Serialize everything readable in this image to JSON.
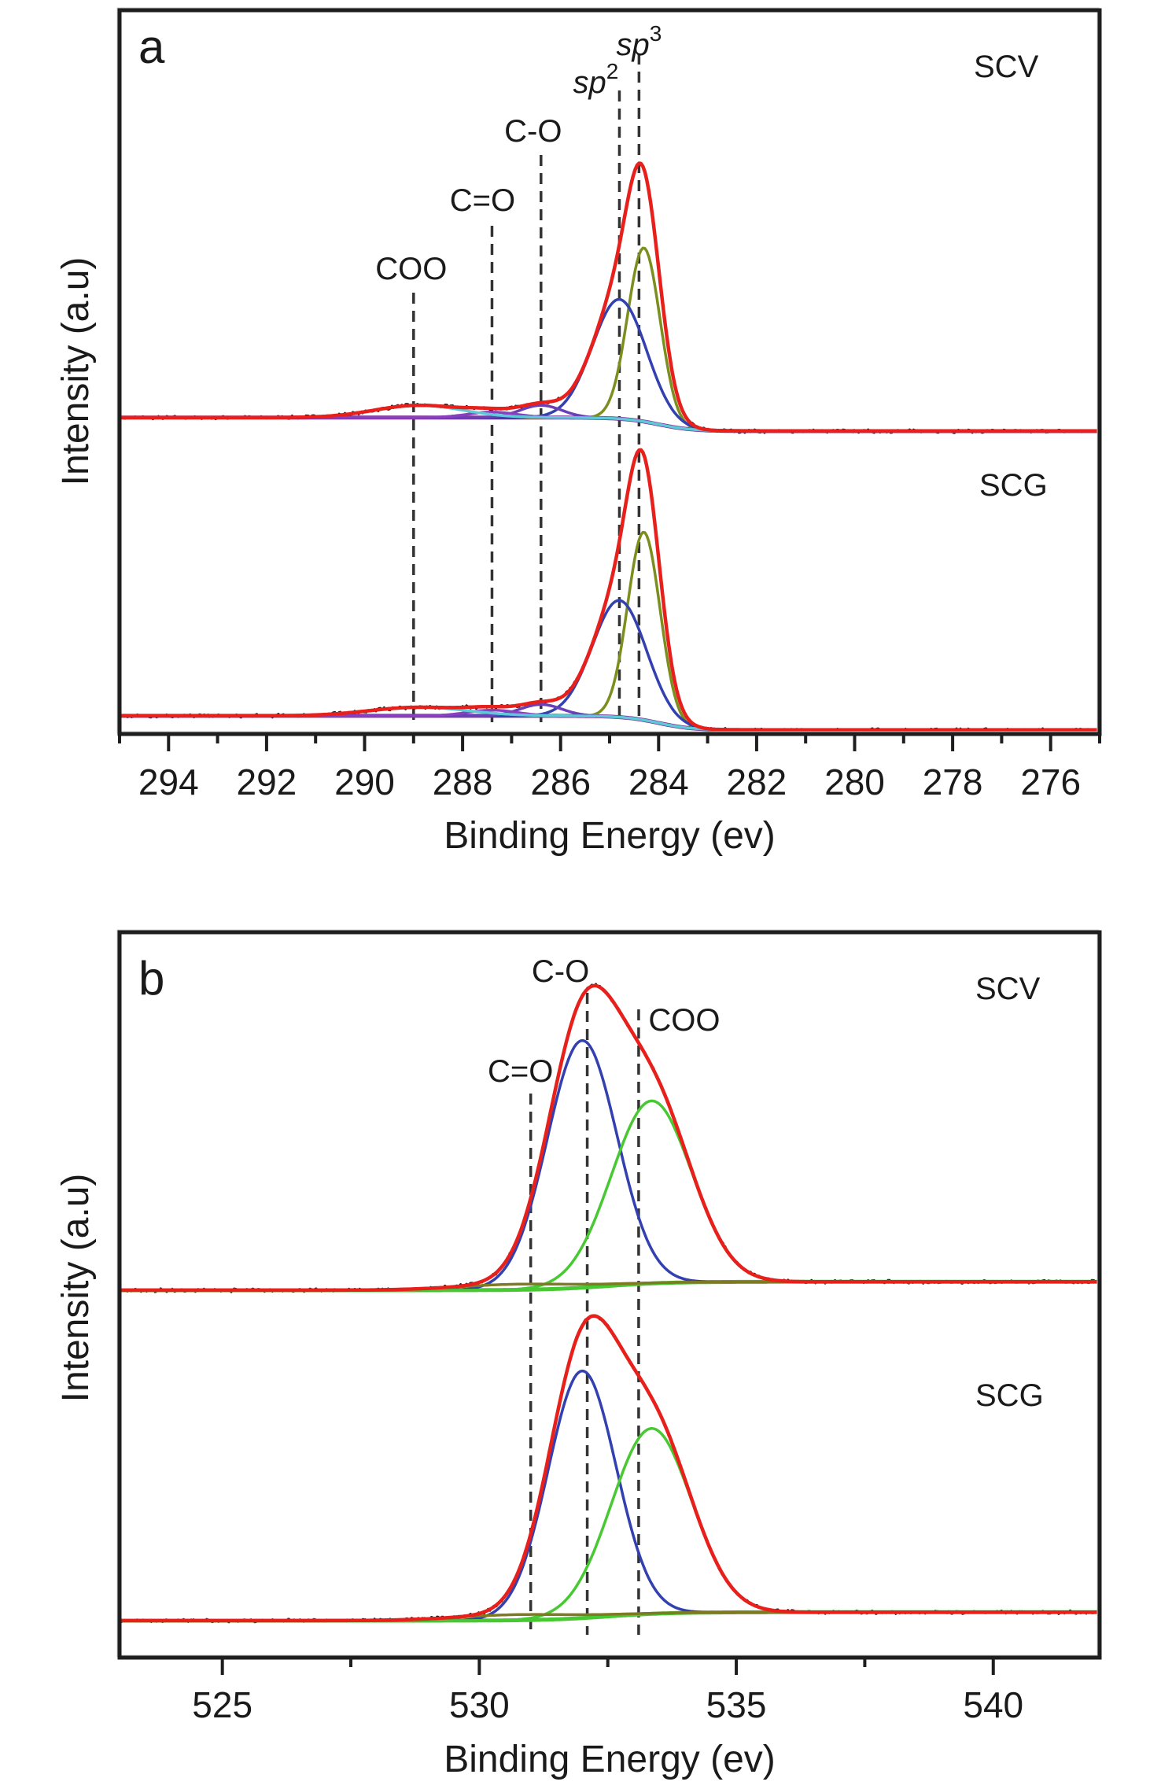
{
  "figure": {
    "panels": [
      "a",
      "b"
    ]
  },
  "chart_data": [
    {
      "type": "line",
      "panel_label": "a",
      "title": "",
      "xlabel": "Binding Energy (ev)",
      "ylabel": "Intensity (a.u)",
      "xlim": [
        295,
        275
      ],
      "x_reversed": true,
      "x_ticks": [
        294,
        292,
        290,
        288,
        286,
        284,
        282,
        280,
        278,
        276
      ],
      "x_minor_ticks": [
        295,
        293,
        291,
        289,
        287,
        285,
        283,
        281,
        279,
        277,
        275
      ],
      "y_ticks": [],
      "grid": false,
      "legend": "none",
      "peak_annotations": [
        {
          "label": "COO",
          "italic": false,
          "superscript": "",
          "x": 289.0
        },
        {
          "label": "C=O",
          "italic": false,
          "superscript": "",
          "x": 287.4
        },
        {
          "label": "C-O",
          "italic": false,
          "superscript": "",
          "x": 286.4
        },
        {
          "label": "sp",
          "italic": true,
          "superscript": "2",
          "x": 284.8
        },
        {
          "label": "sp",
          "italic": true,
          "superscript": "3",
          "x": 284.4
        }
      ],
      "samples": [
        {
          "name": "SCV",
          "background": {
            "left_level": 0.05,
            "right_level": 0.0,
            "step_center": 284.0,
            "step_width": 0.7
          },
          "components": [
            {
              "name": "sp3",
              "color": "#7a8f1e",
              "center": 284.3,
              "sigma": 0.33,
              "amplitude": 0.64
            },
            {
              "name": "sp2",
              "color": "#3340b0",
              "center": 284.8,
              "sigma": 0.55,
              "amplitude": 0.44
            },
            {
              "name": "C-O",
              "color": "#6a3fb8",
              "center": 286.4,
              "sigma": 0.42,
              "amplitude": 0.045
            },
            {
              "name": "C=O",
              "color": "#8a3fc0",
              "center": 287.4,
              "sigma": 0.5,
              "amplitude": 0.02
            },
            {
              "name": "COO",
              "color": "#5fc8d8",
              "center": 288.9,
              "sigma": 0.9,
              "amplitude": 0.045
            }
          ],
          "fit_color": "#e8201c",
          "raw_color": "#111111",
          "background_color": "#7b2d8e"
        },
        {
          "name": "SCG",
          "background": {
            "left_level": 0.05,
            "right_level": 0.0,
            "step_center": 284.0,
            "step_width": 0.7
          },
          "components": [
            {
              "name": "sp3",
              "color": "#7a8f1e",
              "center": 284.3,
              "sigma": 0.33,
              "amplitude": 0.66
            },
            {
              "name": "sp2",
              "color": "#3340b0",
              "center": 284.8,
              "sigma": 0.55,
              "amplitude": 0.41
            },
            {
              "name": "C-O",
              "color": "#6a3fb8",
              "center": 286.4,
              "sigma": 0.42,
              "amplitude": 0.04
            },
            {
              "name": "C=O",
              "color": "#8a3fc0",
              "center": 287.4,
              "sigma": 0.5,
              "amplitude": 0.02
            },
            {
              "name": "COO",
              "color": "#5fc8d8",
              "center": 288.9,
              "sigma": 1.0,
              "amplitude": 0.03
            }
          ],
          "fit_color": "#e8201c",
          "raw_color": "#111111",
          "background_color": "#7b2d8e"
        }
      ]
    },
    {
      "type": "line",
      "panel_label": "b",
      "title": "",
      "xlabel": "Binding Energy (ev)",
      "ylabel": "Intensity (a.u)",
      "xlim": [
        523,
        542.07
      ],
      "x_reversed": false,
      "x_ticks": [
        525,
        530,
        535,
        540
      ],
      "x_minor_ticks": [
        527.5,
        532.5,
        537.5
      ],
      "y_ticks": [],
      "grid": false,
      "legend": "none",
      "peak_annotations": [
        {
          "label": "C=O",
          "italic": false,
          "superscript": "",
          "x": 531.0
        },
        {
          "label": "C-O",
          "italic": false,
          "superscript": "",
          "x": 532.1
        },
        {
          "label": "COO",
          "italic": false,
          "superscript": "",
          "x": 533.1
        }
      ],
      "samples": [
        {
          "name": "SCV",
          "background": {
            "left_level": 0.0,
            "right_level": 0.03,
            "step_center": 532.5,
            "step_width": 1.2
          },
          "components": [
            {
              "name": "C-O",
              "color": "#3340b0",
              "center": 532.0,
              "sigma": 0.68,
              "amplitude": 0.88
            },
            {
              "name": "COO",
              "color": "#48c832",
              "center": 533.35,
              "sigma": 0.78,
              "amplitude": 0.65
            },
            {
              "name": "C=O",
              "color": "#7d7a22",
              "center": 530.8,
              "sigma": 1.2,
              "amplitude": 0.02
            }
          ],
          "fit_color": "#e8201c",
          "raw_color": "#111111",
          "background_color": "#48c832"
        },
        {
          "name": "SCG",
          "background": {
            "left_level": 0.0,
            "right_level": 0.03,
            "step_center": 532.5,
            "step_width": 1.2
          },
          "components": [
            {
              "name": "C-O",
              "color": "#3340b0",
              "center": 532.0,
              "sigma": 0.66,
              "amplitude": 0.88
            },
            {
              "name": "COO",
              "color": "#48c832",
              "center": 533.35,
              "sigma": 0.78,
              "amplitude": 0.66
            },
            {
              "name": "C=O",
              "color": "#7d7a22",
              "center": 530.8,
              "sigma": 1.2,
              "amplitude": 0.02
            }
          ],
          "fit_color": "#e8201c",
          "raw_color": "#111111",
          "background_color": "#48c832"
        }
      ]
    }
  ]
}
